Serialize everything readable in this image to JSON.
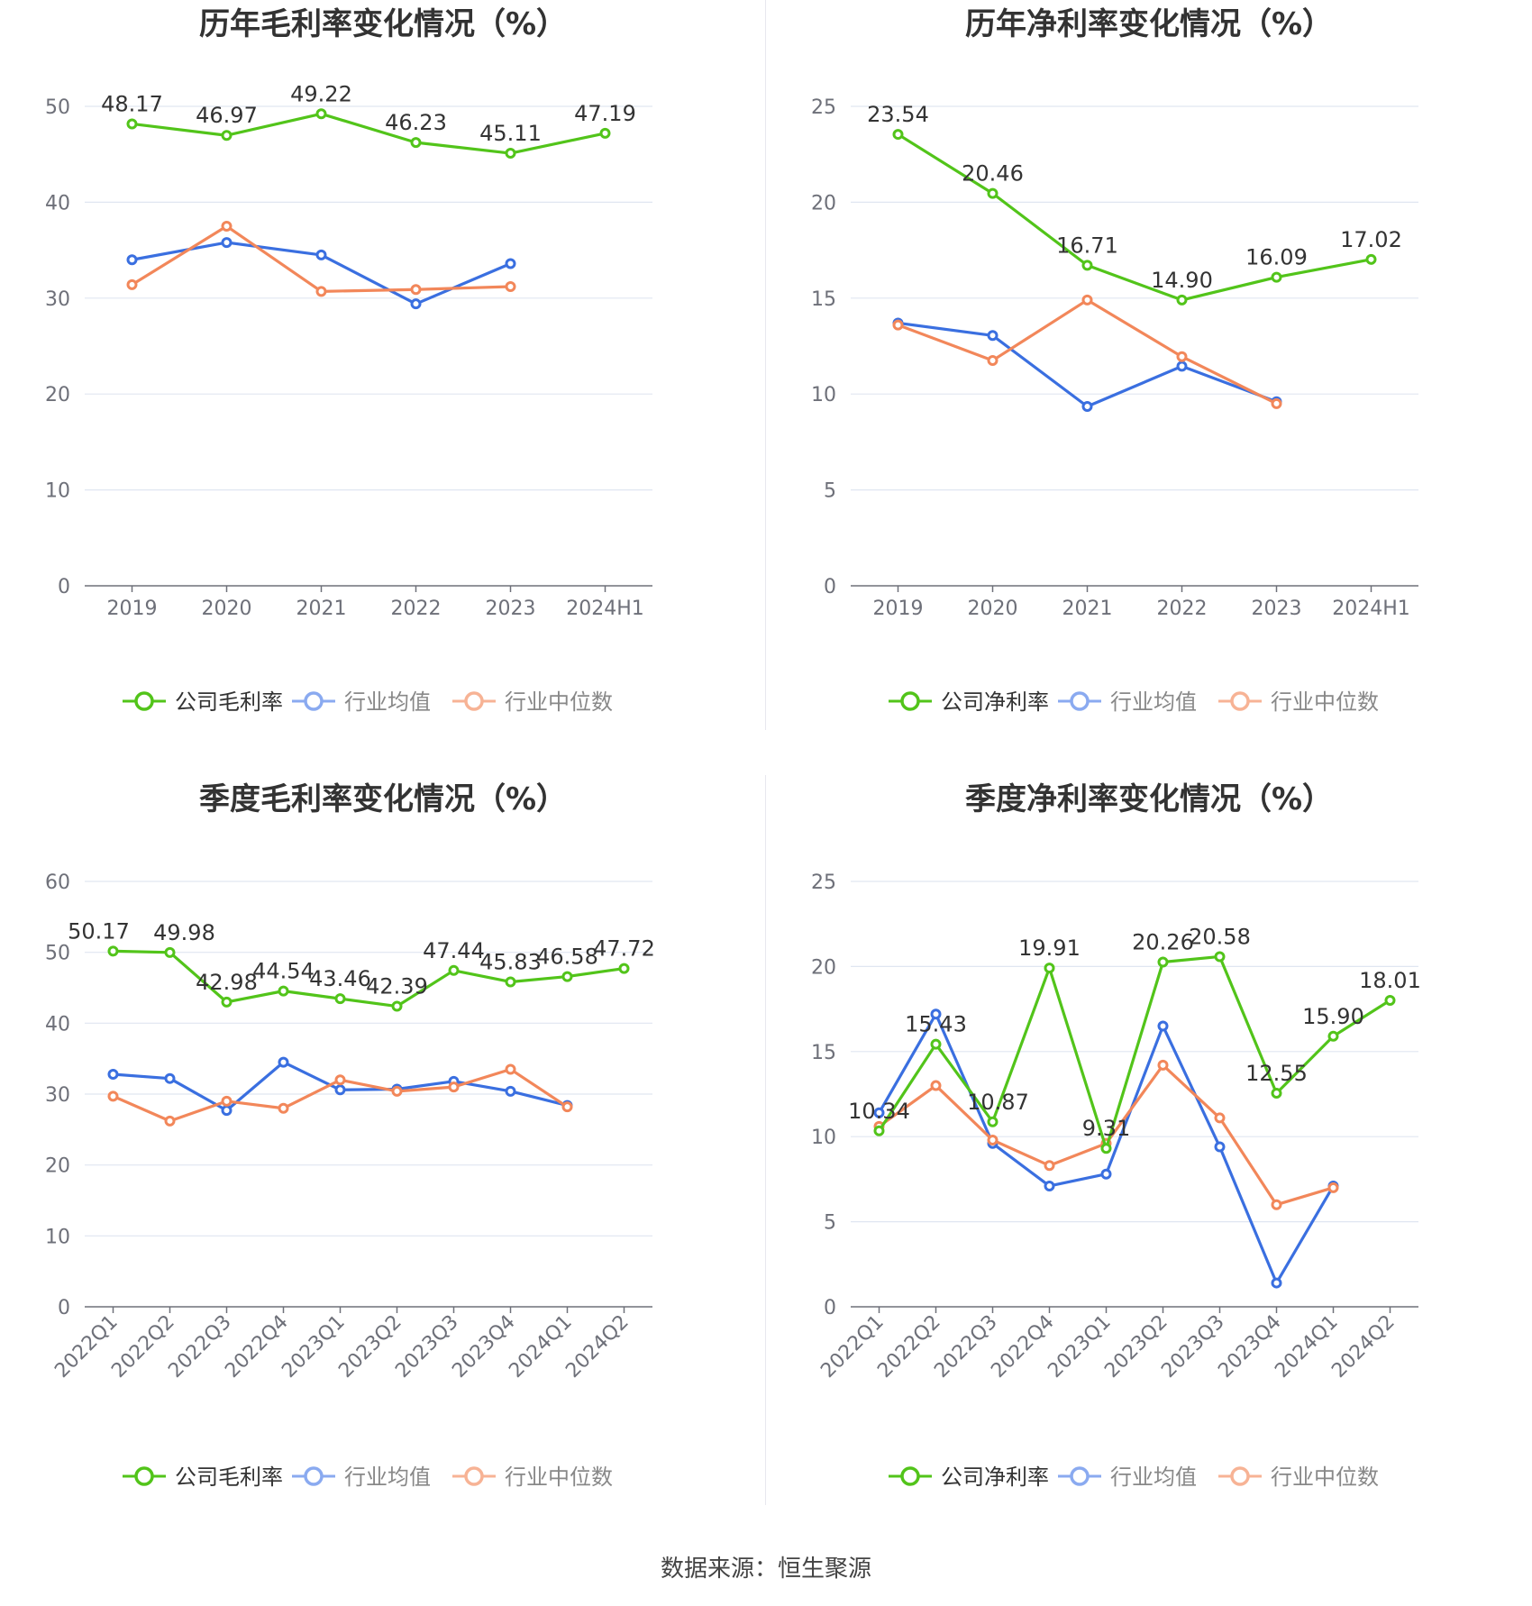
{
  "chart_data": [
    {
      "type": "line",
      "title": "历年毛利率变化情况（%）",
      "categories": [
        "2019",
        "2020",
        "2021",
        "2022",
        "2023",
        "2024H1"
      ],
      "ylim": [
        0,
        50
      ],
      "yticks": [
        0,
        10,
        20,
        30,
        40,
        50
      ],
      "grid": true,
      "legend_position": "bottom",
      "series": [
        {
          "name": "公司毛利率",
          "color": "#52c41a",
          "values": [
            48.17,
            46.97,
            49.22,
            46.23,
            45.11,
            47.19
          ],
          "labels": [
            "48.17",
            "46.97",
            "49.22",
            "46.23",
            "45.11",
            "47.19"
          ]
        },
        {
          "name": "行业均值",
          "color": "#3a6fe0",
          "values": [
            34.0,
            35.8,
            34.5,
            29.4,
            33.6,
            null
          ]
        },
        {
          "name": "行业中位数",
          "color": "#f2875a",
          "values": [
            31.4,
            37.5,
            30.7,
            30.9,
            31.2,
            null
          ]
        }
      ]
    },
    {
      "type": "line",
      "title": "历年净利率变化情况（%）",
      "categories": [
        "2019",
        "2020",
        "2021",
        "2022",
        "2023",
        "2024H1"
      ],
      "ylim": [
        0,
        25
      ],
      "yticks": [
        0,
        5,
        10,
        15,
        20,
        25
      ],
      "grid": true,
      "legend_position": "bottom",
      "series": [
        {
          "name": "公司净利率",
          "color": "#52c41a",
          "values": [
            23.54,
            20.46,
            16.71,
            14.9,
            16.09,
            17.02
          ],
          "labels": [
            "23.54",
            "20.46",
            "16.71",
            "14.90",
            "16.09",
            "17.02"
          ]
        },
        {
          "name": "行业均值",
          "color": "#3a6fe0",
          "values": [
            13.7,
            13.05,
            9.35,
            11.45,
            9.6,
            null
          ]
        },
        {
          "name": "行业中位数",
          "color": "#f2875a",
          "values": [
            13.6,
            11.75,
            14.9,
            11.95,
            9.5,
            null
          ]
        }
      ]
    },
    {
      "type": "line",
      "title": "季度毛利率变化情况（%）",
      "categories": [
        "2022Q1",
        "2022Q2",
        "2022Q3",
        "2022Q4",
        "2023Q1",
        "2023Q2",
        "2023Q3",
        "2023Q4",
        "2024Q1",
        "2024Q2"
      ],
      "ylim": [
        0,
        60
      ],
      "yticks": [
        0,
        10,
        20,
        30,
        40,
        50,
        60
      ],
      "grid": true,
      "legend_position": "bottom",
      "series": [
        {
          "name": "公司毛利率",
          "color": "#52c41a",
          "values": [
            50.17,
            49.98,
            42.98,
            44.54,
            43.46,
            42.39,
            47.44,
            45.83,
            46.58,
            47.72
          ],
          "labels": [
            "50.17",
            "49.98",
            "42.98",
            "44.54",
            "43.46",
            "42.39",
            "47.44",
            "45.83",
            "46.58",
            "47.72"
          ]
        },
        {
          "name": "行业均值",
          "color": "#3a6fe0",
          "values": [
            32.8,
            32.2,
            27.7,
            34.5,
            30.6,
            30.7,
            31.8,
            30.4,
            28.4,
            null
          ]
        },
        {
          "name": "行业中位数",
          "color": "#f2875a",
          "values": [
            29.7,
            26.2,
            29.0,
            28.0,
            32.0,
            30.4,
            31.0,
            33.5,
            28.2,
            null
          ]
        }
      ]
    },
    {
      "type": "line",
      "title": "季度净利率变化情况（%）",
      "categories": [
        "2022Q1",
        "2022Q2",
        "2022Q3",
        "2022Q4",
        "2023Q1",
        "2023Q2",
        "2023Q3",
        "2023Q4",
        "2024Q1",
        "2024Q2"
      ],
      "ylim": [
        0,
        25
      ],
      "yticks": [
        0,
        5,
        10,
        15,
        20,
        25
      ],
      "grid": true,
      "legend_position": "bottom",
      "series": [
        {
          "name": "公司净利率",
          "color": "#52c41a",
          "values": [
            10.34,
            15.43,
            10.87,
            19.91,
            9.31,
            20.26,
            20.58,
            12.55,
            15.9,
            18.01
          ],
          "labels": [
            "10.34",
            "15.43",
            "10.87",
            "19.91",
            "9.31",
            "20.26",
            "20.58",
            "12.55",
            "15.90",
            "18.01"
          ]
        },
        {
          "name": "行业均值",
          "color": "#3a6fe0",
          "values": [
            11.4,
            17.2,
            9.6,
            7.1,
            7.8,
            16.5,
            9.4,
            1.4,
            7.1,
            null
          ]
        },
        {
          "name": "行业中位数",
          "color": "#f2875a",
          "values": [
            10.6,
            13.0,
            9.8,
            8.3,
            9.6,
            14.2,
            11.1,
            6.0,
            7.0,
            null
          ]
        }
      ]
    }
  ],
  "source_note": "数据来源：恒生聚源"
}
